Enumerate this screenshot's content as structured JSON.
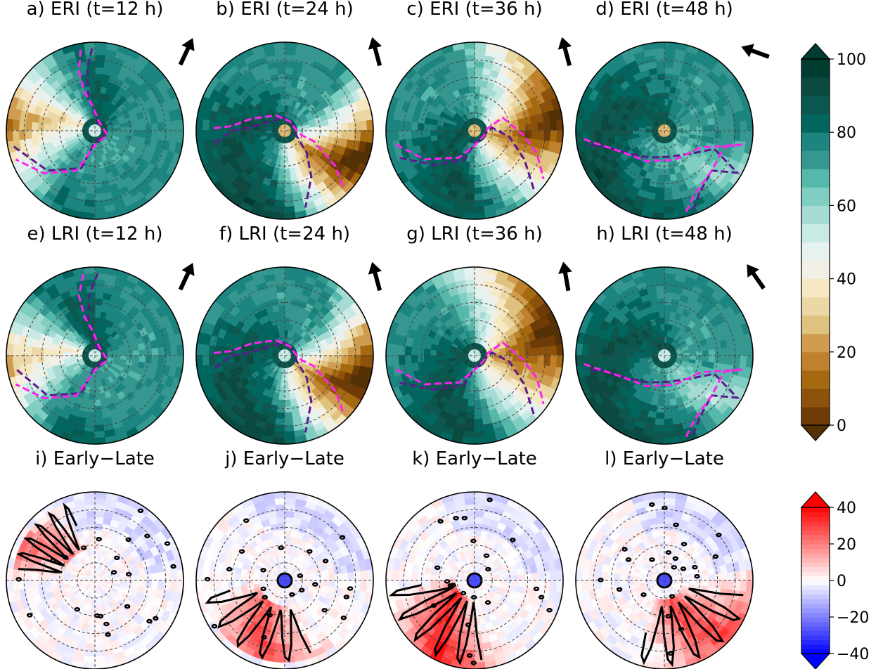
{
  "chart_data": {
    "type": "heatmap",
    "layout": "polar-panel-grid",
    "polar_grid": {
      "rings": 4,
      "crosshairs": true,
      "grid_style": "dashed"
    },
    "panels": [
      {
        "id": "a",
        "title": "a) ERI (t=12 h)",
        "row": 0,
        "col": 0,
        "map": "brown-teal",
        "motion_arrow_deg": 25,
        "dark_core_deg": 60,
        "dry_center_deg": 150,
        "dry_half_width_deg": 70,
        "dry_strength": 0.9,
        "purple_contour": [
          [
            92,
            0.93
          ],
          [
            97,
            0.7
          ],
          [
            100,
            0.45
          ],
          [
            95,
            0.25
          ],
          [
            78,
            0.12
          ],
          [
            -10,
            0.12
          ],
          [
            -95,
            0.15
          ],
          [
            -110,
            0.45
          ],
          [
            -140,
            0.7
          ],
          [
            -170,
            0.95
          ]
        ],
        "magenta_contour": [
          [
            100,
            0.93
          ],
          [
            105,
            0.7
          ],
          [
            105,
            0.45
          ],
          [
            95,
            0.28
          ],
          [
            70,
            0.12
          ],
          [
            -20,
            0.15
          ],
          [
            -85,
            0.15
          ],
          [
            -115,
            0.5
          ],
          [
            -140,
            0.75
          ],
          [
            -160,
            0.95
          ]
        ],
        "eye": "dry-small"
      },
      {
        "id": "b",
        "title": "b) ERI (t=24 h)",
        "row": 0,
        "col": 1,
        "map": "brown-teal",
        "motion_arrow_deg": -15,
        "dark_core_deg": 120,
        "dry_center_deg": -50,
        "dry_half_width_deg": 70,
        "dry_strength": 1.0,
        "purple_contour": [
          [
            -170,
            0.8
          ],
          [
            -180,
            0.6
          ],
          [
            175,
            0.4
          ],
          [
            150,
            0.2
          ],
          [
            90,
            0.15
          ],
          [
            20,
            0.12
          ],
          [
            0,
            0.12
          ],
          [
            -25,
            0.15
          ],
          [
            -45,
            0.35
          ],
          [
            -60,
            0.6
          ],
          [
            -75,
            0.9
          ]
        ],
        "magenta_contour": [
          [
            178,
            0.8
          ],
          [
            175,
            0.6
          ],
          [
            160,
            0.4
          ],
          [
            120,
            0.2
          ],
          [
            60,
            0.12
          ],
          [
            10,
            0.12
          ],
          [
            -15,
            0.2
          ],
          [
            -20,
            0.35
          ],
          [
            -35,
            0.7
          ],
          [
            -45,
            0.95
          ]
        ],
        "eye": "orange"
      },
      {
        "id": "c",
        "title": "c) ERI (t=36 h)",
        "row": 0,
        "col": 2,
        "map": "brown-teal",
        "motion_arrow_deg": -15,
        "dark_core_deg": 170,
        "dry_center_deg": -20,
        "dry_half_width_deg": 100,
        "dry_strength": 1.0,
        "purple_contour": [
          [
            -160,
            0.9
          ],
          [
            -140,
            0.6
          ],
          [
            -110,
            0.35
          ],
          [
            -90,
            0.15
          ],
          [
            -20,
            0.12
          ],
          [
            10,
            0.2
          ],
          [
            -10,
            0.4
          ],
          [
            -30,
            0.65
          ],
          [
            -45,
            0.95
          ]
        ],
        "magenta_contour": [
          [
            -170,
            0.9
          ],
          [
            -150,
            0.65
          ],
          [
            -120,
            0.35
          ],
          [
            -95,
            0.18
          ],
          [
            -30,
            0.12
          ],
          [
            10,
            0.15
          ],
          [
            25,
            0.35
          ],
          [
            -5,
            0.55
          ],
          [
            -20,
            0.75
          ],
          [
            -35,
            0.95
          ]
        ],
        "eye": "orange"
      },
      {
        "id": "d",
        "title": "d) ERI (t=48 h)",
        "row": 0,
        "col": 3,
        "map": "brown-teal",
        "motion_arrow_deg": -70,
        "dark_core_deg": 90,
        "dry_center_deg": -60,
        "dry_half_width_deg": 30,
        "dry_strength": 0.2,
        "purple_contour": [
          [
            -70,
            0.95
          ],
          [
            -60,
            0.8
          ],
          [
            -40,
            0.7
          ],
          [
            -30,
            0.95
          ],
          [
            -20,
            0.6
          ],
          [
            -40,
            0.4
          ],
          [
            -80,
            0.3
          ],
          [
            -120,
            0.35
          ],
          [
            -150,
            0.5
          ],
          [
            -165,
            0.7
          ],
          [
            -170,
            0.9
          ]
        ],
        "magenta_contour": [
          [
            -75,
            0.95
          ],
          [
            -65,
            0.8
          ],
          [
            -40,
            0.7
          ],
          [
            -15,
            0.7
          ],
          [
            -10,
            0.9
          ],
          [
            -25,
            0.45
          ],
          [
            -70,
            0.35
          ],
          [
            -120,
            0.4
          ],
          [
            -155,
            0.55
          ],
          [
            -168,
            0.75
          ],
          [
            -175,
            0.95
          ]
        ],
        "eye": "orange"
      },
      {
        "id": "e",
        "title": "e) LRI (t=12 h)",
        "row": 1,
        "col": 0,
        "map": "brown-teal",
        "motion_arrow_deg": 25,
        "dark_core_deg": 70,
        "dry_center_deg": 160,
        "dry_half_width_deg": 60,
        "dry_strength": 0.8,
        "purple_contour": [
          [
            88,
            0.93
          ],
          [
            95,
            0.7
          ],
          [
            100,
            0.45
          ],
          [
            95,
            0.25
          ],
          [
            80,
            0.1
          ],
          [
            -10,
            0.12
          ],
          [
            -95,
            0.15
          ],
          [
            -110,
            0.45
          ],
          [
            -140,
            0.7
          ],
          [
            -170,
            0.9
          ]
        ],
        "magenta_contour": [
          [
            98,
            0.93
          ],
          [
            105,
            0.7
          ],
          [
            105,
            0.45
          ],
          [
            95,
            0.28
          ],
          [
            70,
            0.12
          ],
          [
            -20,
            0.15
          ],
          [
            -85,
            0.15
          ],
          [
            -115,
            0.5
          ],
          [
            -140,
            0.75
          ],
          [
            -160,
            0.95
          ]
        ],
        "eye": "dry-small"
      },
      {
        "id": "f",
        "title": "f) LRI (t=24 h)",
        "row": 1,
        "col": 1,
        "map": "brown-teal",
        "motion_arrow_deg": -15,
        "dark_core_deg": 120,
        "dry_center_deg": -45,
        "dry_half_width_deg": 75,
        "dry_strength": 1.0,
        "purple_contour": [
          [
            -170,
            0.8
          ],
          [
            -180,
            0.6
          ],
          [
            175,
            0.4
          ],
          [
            150,
            0.2
          ],
          [
            90,
            0.15
          ],
          [
            20,
            0.12
          ],
          [
            0,
            0.12
          ],
          [
            -25,
            0.15
          ],
          [
            -45,
            0.35
          ],
          [
            -60,
            0.6
          ],
          [
            -75,
            0.9
          ]
        ],
        "magenta_contour": [
          [
            178,
            0.8
          ],
          [
            175,
            0.6
          ],
          [
            160,
            0.4
          ],
          [
            120,
            0.2
          ],
          [
            60,
            0.12
          ],
          [
            10,
            0.12
          ],
          [
            -15,
            0.2
          ],
          [
            -20,
            0.35
          ],
          [
            -35,
            0.7
          ],
          [
            -45,
            0.95
          ]
        ],
        "eye": "dry-small"
      },
      {
        "id": "g",
        "title": "g) LRI (t=36 h)",
        "row": 1,
        "col": 2,
        "map": "brown-teal",
        "motion_arrow_deg": -10,
        "dark_core_deg": 160,
        "dry_center_deg": -10,
        "dry_half_width_deg": 110,
        "dry_strength": 1.0,
        "purple_contour": [
          [
            -160,
            0.9
          ],
          [
            -140,
            0.6
          ],
          [
            -110,
            0.35
          ],
          [
            -90,
            0.15
          ],
          [
            -20,
            0.12
          ],
          [
            10,
            0.2
          ],
          [
            -10,
            0.4
          ],
          [
            -30,
            0.65
          ],
          [
            -45,
            0.95
          ]
        ],
        "magenta_contour": [
          [
            -170,
            0.9
          ],
          [
            -150,
            0.65
          ],
          [
            -120,
            0.35
          ],
          [
            -95,
            0.18
          ],
          [
            -30,
            0.12
          ],
          [
            10,
            0.15
          ],
          [
            25,
            0.35
          ],
          [
            -5,
            0.55
          ],
          [
            -20,
            0.75
          ],
          [
            -35,
            0.95
          ]
        ],
        "eye": "none"
      },
      {
        "id": "h",
        "title": "h) LRI (t=48 h)",
        "row": 1,
        "col": 3,
        "map": "brown-teal",
        "motion_arrow_deg": -35,
        "dark_core_deg": 100,
        "dry_center_deg": -60,
        "dry_half_width_deg": 35,
        "dry_strength": 0.25,
        "purple_contour": [
          [
            -70,
            0.95
          ],
          [
            -60,
            0.8
          ],
          [
            -40,
            0.7
          ],
          [
            -30,
            0.95
          ],
          [
            -20,
            0.6
          ],
          [
            -40,
            0.4
          ],
          [
            -80,
            0.3
          ],
          [
            -120,
            0.35
          ],
          [
            -150,
            0.5
          ],
          [
            -165,
            0.7
          ],
          [
            -170,
            0.9
          ]
        ],
        "magenta_contour": [
          [
            -75,
            0.95
          ],
          [
            -65,
            0.8
          ],
          [
            -40,
            0.7
          ],
          [
            -15,
            0.7
          ],
          [
            -10,
            0.9
          ],
          [
            -25,
            0.45
          ],
          [
            -70,
            0.35
          ],
          [
            -120,
            0.4
          ],
          [
            -155,
            0.55
          ],
          [
            -168,
            0.75
          ],
          [
            -175,
            0.95
          ]
        ],
        "eye": "dry-small"
      },
      {
        "id": "i",
        "title": "i) Early−Late",
        "row": 2,
        "col": 0,
        "map": "blue-red",
        "positive_band": {
          "center_deg": 140,
          "half_width_deg": 35,
          "r_inner": 0.35,
          "r_outer": 0.95,
          "strength": 0.55
        },
        "eye": "none"
      },
      {
        "id": "j",
        "title": "j) Early−Late",
        "row": 2,
        "col": 1,
        "map": "blue-red",
        "positive_band": {
          "center_deg": -120,
          "half_width_deg": 55,
          "r_inner": 0.3,
          "r_outer": 0.95,
          "strength": 0.7
        },
        "eye": "blue"
      },
      {
        "id": "k",
        "title": "k) Early−Late",
        "row": 2,
        "col": 2,
        "map": "blue-red",
        "positive_band": {
          "center_deg": -130,
          "half_width_deg": 50,
          "r_inner": 0.2,
          "r_outer": 1.0,
          "strength": 0.9
        },
        "eye": "blue"
      },
      {
        "id": "l",
        "title": "l) Early−Late",
        "row": 2,
        "col": 3,
        "map": "blue-red",
        "positive_band": {
          "center_deg": -60,
          "half_width_deg": 55,
          "r_inner": 0.25,
          "r_outer": 1.0,
          "strength": 0.75
        },
        "eye": "blue"
      }
    ],
    "colorbars": [
      {
        "id": "rh",
        "map": "brown-teal",
        "min": 0,
        "max": 100,
        "levels": 20,
        "extend": "both",
        "ticks": [
          0,
          20,
          40,
          60,
          80,
          100
        ],
        "tick_labels": [
          "0",
          "20",
          "40",
          "60",
          "80",
          "100"
        ]
      },
      {
        "id": "diff",
        "map": "blue-red",
        "min": -40,
        "max": 40,
        "levels": 32,
        "extend": "both",
        "ticks": [
          -40,
          -20,
          0,
          20,
          40
        ],
        "tick_labels": [
          "−40",
          "−20",
          "0",
          "20",
          "40"
        ]
      }
    ],
    "colors": {
      "brown-teal": [
        "#543005",
        "#6e3b07",
        "#8c510a",
        "#a56a10",
        "#bf812d",
        "#cf9c50",
        "#dfc27d",
        "#ecd7a6",
        "#f6e8c3",
        "#f2f0e4",
        "#e5f2f0",
        "#c7eae5",
        "#a5dbd3",
        "#80cdc1",
        "#56b8ab",
        "#35978f",
        "#1d8580",
        "#01665e",
        "#0a584f",
        "#0b4a41",
        "#003c30"
      ],
      "blue-red": [
        "#0000ff",
        "#ffffff",
        "#ff0000"
      ],
      "purple_contour": "#5b1a8c",
      "magenta_contour": "#ff22ee",
      "axis": "#000000",
      "grid": "#444444"
    }
  }
}
